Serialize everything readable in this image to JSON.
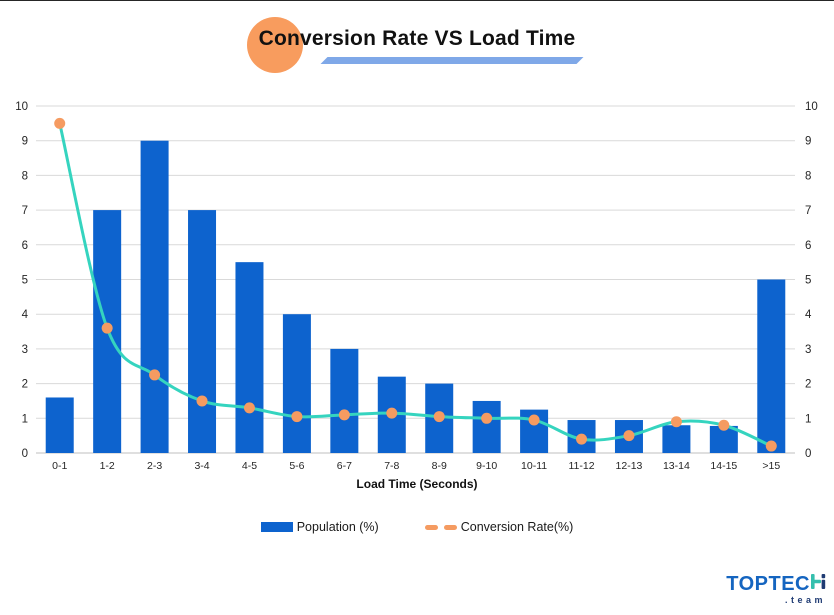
{
  "title": {
    "text": "Conversion Rate VS Load Time"
  },
  "axis": {
    "x_title": "Load Time (Seconds)"
  },
  "legend": {
    "population_label": "Population (%)",
    "conversion_label": "Conversion Rate(%)"
  },
  "logo": {
    "main": "TOPTEC",
    "h_letter": "H",
    "sub": ".team"
  },
  "colors": {
    "bar": "#0D63CE",
    "line": "#35D4BF",
    "marker": "#F59B61",
    "title_circle": "#F89C5E",
    "title_underline": "#7FA8E8",
    "grid": "#D9D9D9",
    "tick_text": "#262626",
    "logo_blue": "#1565C0",
    "logo_teal": "#35BFAD",
    "logo_navy": "#1F3B73"
  },
  "chart_data": {
    "type": "bar+line combo",
    "title": "Conversion Rate VS Load Time",
    "xlabel": "Load Time (Seconds)",
    "categories": [
      "0-1",
      "1-2",
      "2-3",
      "3-4",
      "4-5",
      "5-6",
      "6-7",
      "7-8",
      "8-9",
      "9-10",
      "10-11",
      "11-12",
      "12-13",
      "13-14",
      "14-15",
      ">15"
    ],
    "series": [
      {
        "name": "Population (%)",
        "type": "bar",
        "values": [
          1.6,
          7,
          9,
          7,
          5.5,
          4,
          3,
          2.2,
          2,
          1.5,
          1.25,
          0.95,
          0.95,
          0.8,
          0.78,
          5
        ]
      },
      {
        "name": "Conversion Rate(%)",
        "type": "line",
        "values": [
          9.5,
          3.6,
          2.25,
          1.5,
          1.3,
          1.05,
          1.1,
          1.15,
          1.05,
          1.0,
          0.95,
          0.4,
          0.5,
          0.9,
          0.8,
          0.2
        ]
      }
    ],
    "y_left": {
      "min": 0,
      "max": 10,
      "ticks": [
        0,
        1,
        2,
        3,
        4,
        5,
        6,
        7,
        8,
        9,
        10
      ]
    },
    "y_right": {
      "min": 0,
      "max": 10,
      "ticks": [
        0,
        1,
        2,
        3,
        4,
        5,
        6,
        7,
        8,
        9,
        10
      ]
    },
    "grid": "horizontal only",
    "legend_position": "bottom center"
  }
}
